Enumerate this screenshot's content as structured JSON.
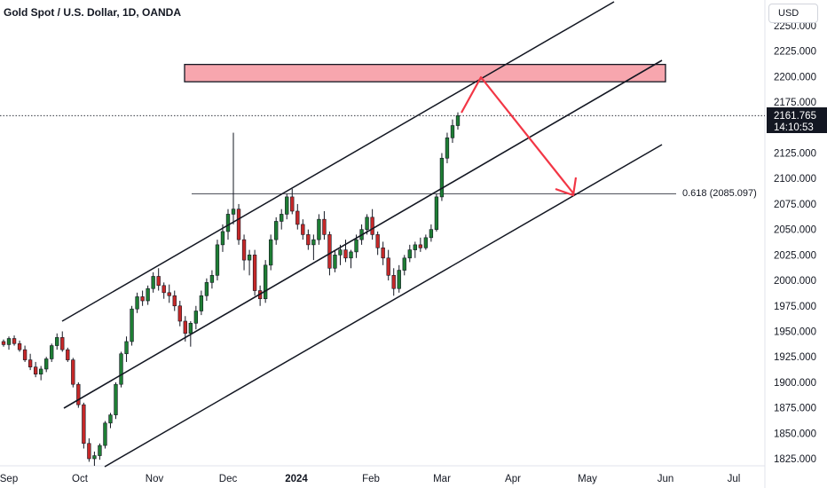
{
  "header": {
    "title": "Gold Spot / U.S. Dollar, 1D, OANDA"
  },
  "toolbar": {
    "currency_label": "USD"
  },
  "price_label": {
    "value": "2161.765",
    "countdown": "14:10:53"
  },
  "fib_label": "0.618 (2085.097)",
  "colors": {
    "up": "#26a69a",
    "up_body": "#1e7e34",
    "down": "#ef5350",
    "down_body": "#c62828",
    "zone_fill": "#f7a6ae",
    "arrow": "#f23645",
    "line": "#131722"
  },
  "chart_data": {
    "type": "candlestick",
    "title": "Gold Spot / U.S. Dollar, 1D, OANDA",
    "y_axis": {
      "ticks": [
        "2250.000",
        "2225.000",
        "2200.000",
        "2175.000",
        "2150.000",
        "2125.000",
        "2100.000",
        "2075.000",
        "2050.000",
        "2025.000",
        "2000.000",
        "1975.000",
        "1950.000",
        "1925.000",
        "1900.000",
        "1875.000",
        "1850.000",
        "1825.000"
      ],
      "ylim": [
        1818,
        2265
      ]
    },
    "x_axis": {
      "ticks": [
        "Sep",
        "Oct",
        "Nov",
        "Dec",
        "2024",
        "Feb",
        "Mar",
        "Apr",
        "May",
        "Jun",
        "Jul"
      ]
    },
    "last_price": 2161.765,
    "fib_level": {
      "label": "0.618 (2085.097)",
      "value": 2085.097
    },
    "resistance_zone": {
      "low": 2195,
      "high": 2212
    },
    "ohlc": [
      [
        1940,
        1942,
        1935,
        1937
      ],
      [
        1937,
        1945,
        1932,
        1943
      ],
      [
        1943,
        1946,
        1936,
        1938
      ],
      [
        1938,
        1941,
        1930,
        1932
      ],
      [
        1932,
        1936,
        1920,
        1922
      ],
      [
        1922,
        1928,
        1912,
        1915
      ],
      [
        1915,
        1920,
        1905,
        1908
      ],
      [
        1908,
        1916,
        1902,
        1913
      ],
      [
        1913,
        1925,
        1910,
        1923
      ],
      [
        1923,
        1938,
        1920,
        1936
      ],
      [
        1936,
        1948,
        1932,
        1944
      ],
      [
        1944,
        1950,
        1930,
        1932
      ],
      [
        1932,
        1934,
        1920,
        1922
      ],
      [
        1922,
        1924,
        1895,
        1898
      ],
      [
        1898,
        1900,
        1875,
        1878
      ],
      [
        1878,
        1880,
        1835,
        1840
      ],
      [
        1840,
        1845,
        1822,
        1825
      ],
      [
        1825,
        1832,
        1818,
        1828
      ],
      [
        1828,
        1840,
        1824,
        1838
      ],
      [
        1838,
        1862,
        1835,
        1860
      ],
      [
        1860,
        1870,
        1855,
        1868
      ],
      [
        1868,
        1900,
        1864,
        1898
      ],
      [
        1898,
        1930,
        1895,
        1928
      ],
      [
        1928,
        1945,
        1920,
        1940
      ],
      [
        1940,
        1975,
        1936,
        1972
      ],
      [
        1972,
        1988,
        1968,
        1984
      ],
      [
        1984,
        1990,
        1975,
        1980
      ],
      [
        1980,
        1995,
        1976,
        1992
      ],
      [
        1992,
        2008,
        1988,
        2004
      ],
      [
        2004,
        2012,
        1990,
        1995
      ],
      [
        1995,
        1998,
        1982,
        1988
      ],
      [
        1988,
        1996,
        1978,
        1985
      ],
      [
        1985,
        1990,
        1970,
        1975
      ],
      [
        1975,
        1980,
        1955,
        1960
      ],
      [
        1960,
        1965,
        1940,
        1948
      ],
      [
        1948,
        1960,
        1935,
        1958
      ],
      [
        1958,
        1975,
        1952,
        1970
      ],
      [
        1970,
        1990,
        1966,
        1985
      ],
      [
        1985,
        2002,
        1980,
        1998
      ],
      [
        1998,
        2010,
        1992,
        2005
      ],
      [
        2005,
        2040,
        2000,
        2035
      ],
      [
        2035,
        2055,
        2028,
        2048
      ],
      [
        2048,
        2070,
        2040,
        2065
      ],
      [
        2065,
        2145,
        2055,
        2070
      ],
      [
        2070,
        2075,
        2035,
        2040
      ],
      [
        2040,
        2045,
        2010,
        2020
      ],
      [
        2020,
        2030,
        2005,
        2025
      ],
      [
        2025,
        2030,
        1985,
        1990
      ],
      [
        1990,
        1995,
        1975,
        1982
      ],
      [
        1982,
        2020,
        1978,
        2015
      ],
      [
        2015,
        2045,
        2010,
        2040
      ],
      [
        2040,
        2062,
        2035,
        2058
      ],
      [
        2058,
        2070,
        2050,
        2065
      ],
      [
        2065,
        2085,
        2060,
        2082
      ],
      [
        2082,
        2090,
        2065,
        2068
      ],
      [
        2068,
        2075,
        2050,
        2055
      ],
      [
        2055,
        2060,
        2040,
        2045
      ],
      [
        2045,
        2050,
        2030,
        2035
      ],
      [
        2035,
        2045,
        2020,
        2040
      ],
      [
        2040,
        2065,
        2035,
        2060
      ],
      [
        2060,
        2068,
        2040,
        2045
      ],
      [
        2045,
        2048,
        2005,
        2012
      ],
      [
        2012,
        2030,
        2008,
        2025
      ],
      [
        2025,
        2035,
        2015,
        2030
      ],
      [
        2030,
        2040,
        2018,
        2022
      ],
      [
        2022,
        2030,
        2012,
        2028
      ],
      [
        2028,
        2045,
        2022,
        2040
      ],
      [
        2040,
        2055,
        2035,
        2050
      ],
      [
        2050,
        2065,
        2045,
        2062
      ],
      [
        2062,
        2070,
        2040,
        2045
      ],
      [
        2045,
        2048,
        2025,
        2032
      ],
      [
        2032,
        2038,
        2015,
        2022
      ],
      [
        2022,
        2030,
        2000,
        2005
      ],
      [
        2005,
        2012,
        1985,
        1992
      ],
      [
        1992,
        2015,
        1988,
        2010
      ],
      [
        2010,
        2025,
        2005,
        2022
      ],
      [
        2022,
        2035,
        2018,
        2030
      ],
      [
        2030,
        2038,
        2022,
        2035
      ],
      [
        2035,
        2042,
        2028,
        2032
      ],
      [
        2032,
        2045,
        2030,
        2042
      ],
      [
        2042,
        2055,
        2038,
        2050
      ],
      [
        2050,
        2085,
        2048,
        2082
      ],
      [
        2082,
        2125,
        2078,
        2120
      ],
      [
        2120,
        2145,
        2115,
        2140
      ],
      [
        2140,
        2158,
        2135,
        2152
      ],
      [
        2152,
        2165,
        2148,
        2161.765
      ]
    ]
  }
}
